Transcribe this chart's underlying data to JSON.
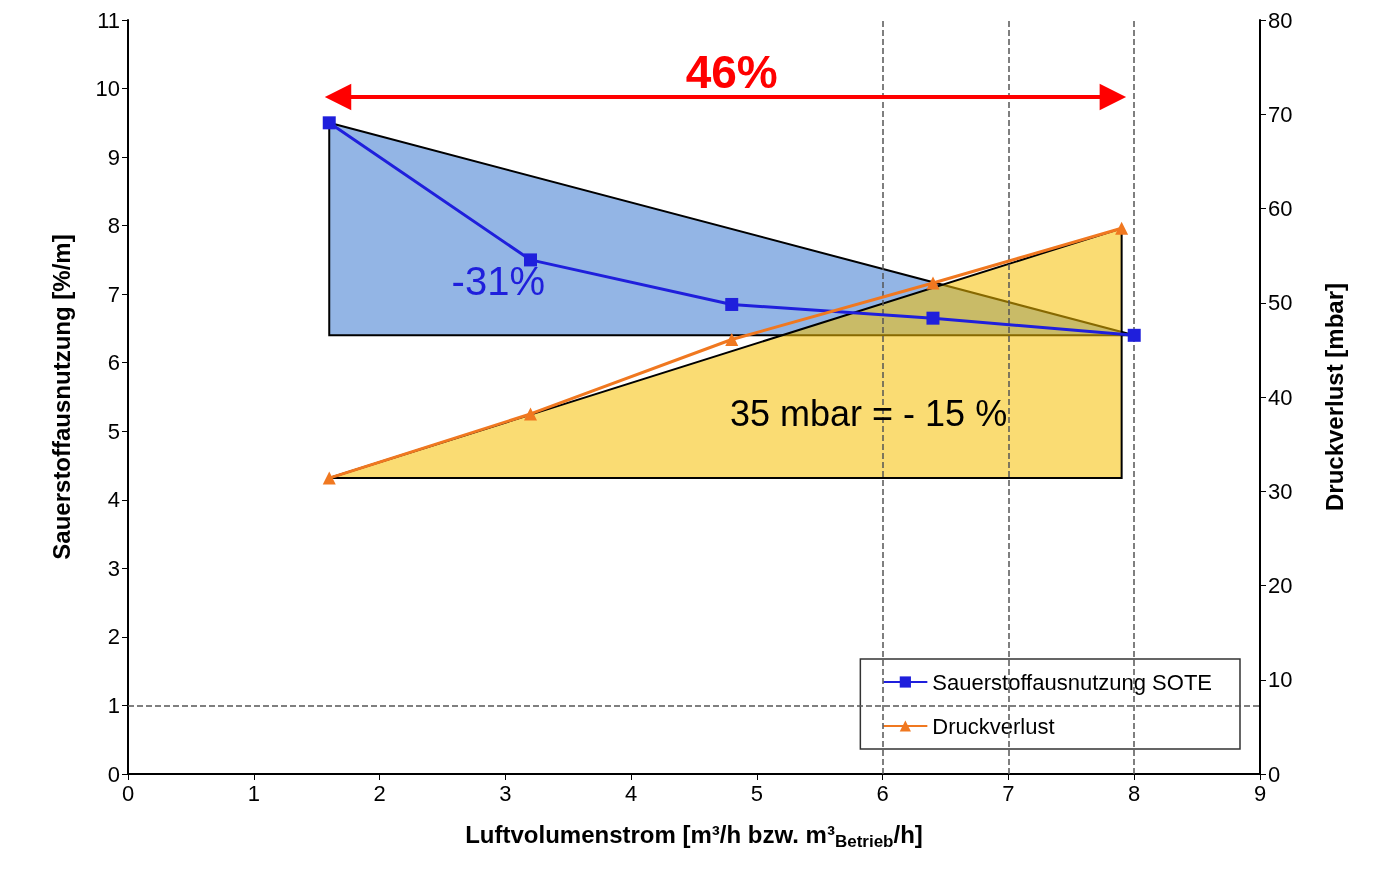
{
  "chart_data": {
    "type": "line",
    "xlabel": "Luftvolumenstrom [m³/h bzw. m³$_{Betrieb}$/h]",
    "ylabel": "Sauerstoffausnutzung [%/m]",
    "y2label": "Druckverlust [mbar]",
    "xlim": [
      0,
      9
    ],
    "xticks": [
      0,
      1,
      2,
      3,
      4,
      5,
      6,
      7,
      8,
      9
    ],
    "ylim": [
      0,
      11
    ],
    "yticks": [
      0,
      1,
      2,
      3,
      4,
      5,
      6,
      7,
      8,
      9,
      10,
      11
    ],
    "y2lim": [
      0,
      80
    ],
    "y2ticks": [
      0,
      10,
      20,
      30,
      40,
      50,
      60,
      70,
      80
    ],
    "grid": false,
    "legend": "bottom right",
    "series": [
      {
        "name": "Sauerstoffausnutzung SOTE",
        "color": "#1f1fdc",
        "marker": "square",
        "x": [
          1.6,
          3.2,
          4.8,
          6.4,
          8.0
        ],
        "values": [
          9.5,
          7.5,
          6.85,
          6.65,
          6.4
        ]
      },
      {
        "name": "Druckverlust",
        "color": "#f07820",
        "marker": "triangle",
        "axis": "y2",
        "x": [
          1.6,
          3.2,
          4.8,
          6.4,
          7.9
        ],
        "values": [
          31.4,
          38.2,
          46.1,
          52.1,
          57.9
        ]
      }
    ],
    "ref_lines": [
      {
        "axis": "x",
        "value": 6,
        "color": "#555555",
        "line_style": "dashed"
      },
      {
        "axis": "x",
        "value": 7,
        "color": "#555555",
        "line_style": "dashed"
      },
      {
        "axis": "x",
        "value": 8,
        "color": "#555555",
        "line_style": "dashed"
      },
      {
        "axis": "y",
        "value": 1,
        "color": "#555555",
        "line_style": "dashed"
      }
    ],
    "annotations": [
      "46%",
      "-31%",
      "35 mbar = - 15 %"
    ]
  }
}
